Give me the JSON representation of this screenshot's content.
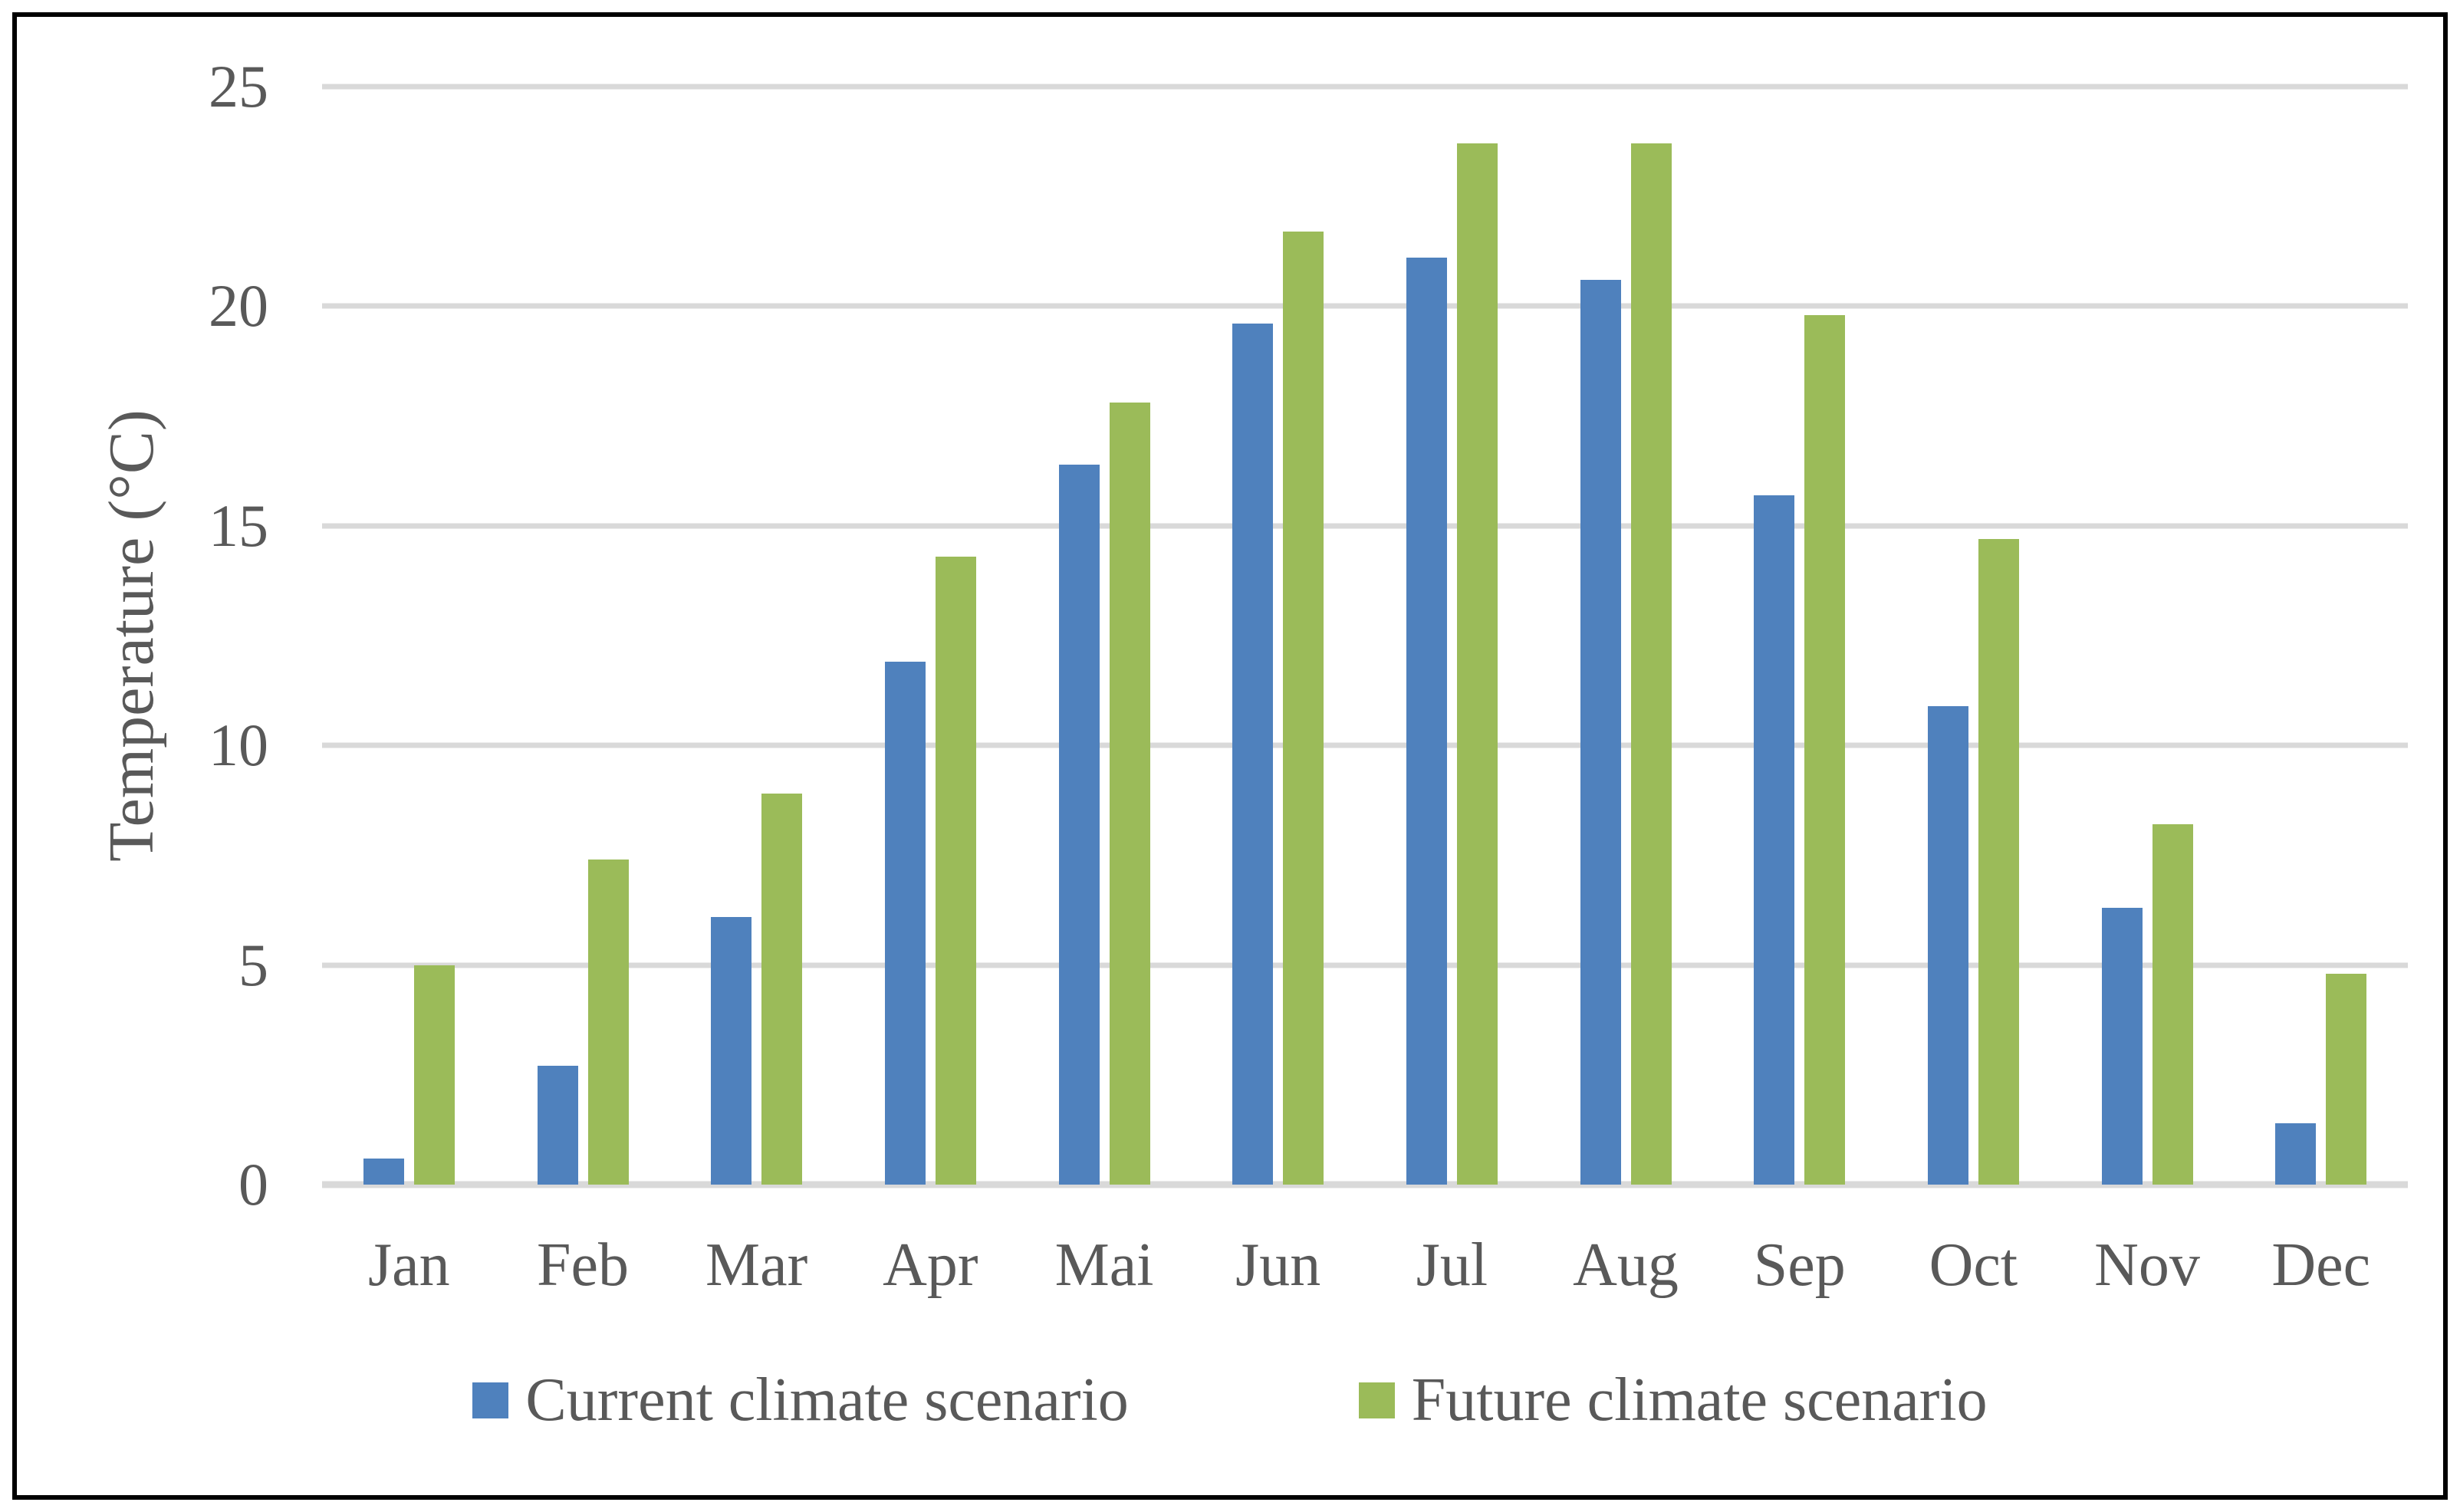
{
  "figure": {
    "background": "#ffffff",
    "border_color": "#000000",
    "text_color": "#595959",
    "gridline_color": "#d9d9d9"
  },
  "chart_data": {
    "type": "bar",
    "title": "",
    "xlabel": "",
    "ylabel": "Temperature (°C)",
    "ylim": [
      0,
      25
    ],
    "yticks": [
      0,
      5,
      10,
      15,
      20,
      25
    ],
    "grid": true,
    "legend_position": "bottom-center",
    "categories": [
      "Jan",
      "Feb",
      "Mar",
      "Apr",
      "Mai",
      "Jun",
      "Jul",
      "Aug",
      "Sep",
      "Oct",
      "Nov",
      "Dec"
    ],
    "series": [
      {
        "name": "Current climate scenario",
        "color": "#4f81bd",
        "values": [
          0.6,
          2.7,
          6.1,
          11.9,
          16.4,
          19.6,
          21.1,
          20.6,
          15.7,
          10.9,
          6.3,
          1.4
        ]
      },
      {
        "name": "Future climate scenario",
        "color": "#9bbb59",
        "values": [
          5.0,
          7.4,
          8.9,
          14.3,
          17.8,
          21.7,
          23.7,
          23.7,
          19.8,
          14.7,
          8.2,
          4.8
        ]
      }
    ]
  }
}
